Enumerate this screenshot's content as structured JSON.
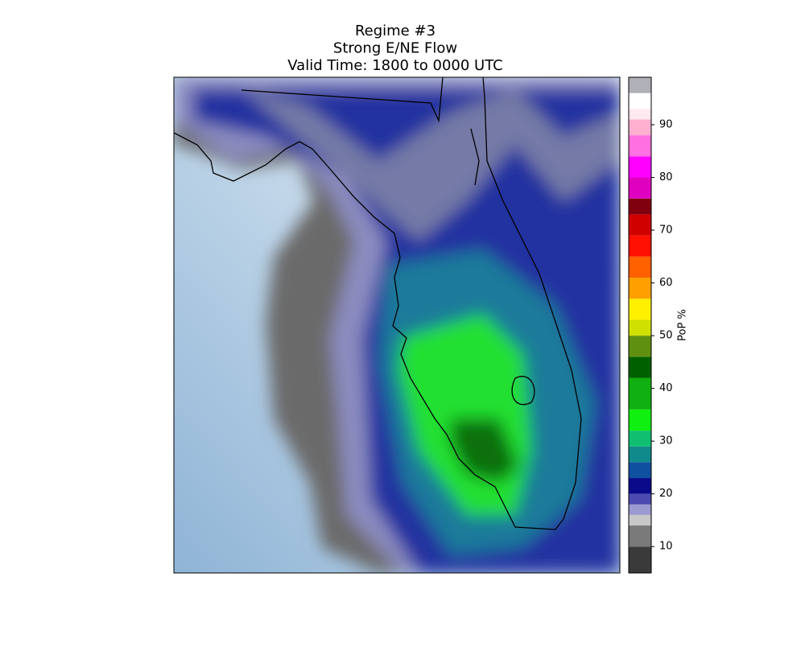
{
  "title_lines": [
    "Regime #3",
    "Strong E/NE Flow",
    "Valid Time: 1800 to 0000 UTC"
  ],
  "colorbar": {
    "label": "PoP %",
    "lim": [
      5,
      99
    ],
    "ticks": [
      10,
      20,
      30,
      40,
      50,
      60,
      70,
      80,
      90
    ],
    "colormap": [
      {
        "value": 5,
        "color": "#3a3a3a"
      },
      {
        "value": 10,
        "color": "#7a7a7a"
      },
      {
        "value": 14,
        "color": "#c8c8c8"
      },
      {
        "value": 16,
        "color": "#9a9ad0"
      },
      {
        "value": 18,
        "color": "#4a4ab0"
      },
      {
        "value": 20,
        "color": "#0a0a8a"
      },
      {
        "value": 23,
        "color": "#1050a0"
      },
      {
        "value": 26,
        "color": "#108a8a"
      },
      {
        "value": 29,
        "color": "#10c070"
      },
      {
        "value": 32,
        "color": "#10f010"
      },
      {
        "value": 36,
        "color": "#10b010"
      },
      {
        "value": 42,
        "color": "#006000"
      },
      {
        "value": 46,
        "color": "#609010"
      },
      {
        "value": 50,
        "color": "#d0e000"
      },
      {
        "value": 53,
        "color": "#fff000"
      },
      {
        "value": 57,
        "color": "#ffa000"
      },
      {
        "value": 61,
        "color": "#ff6000"
      },
      {
        "value": 65,
        "color": "#ff1000"
      },
      {
        "value": 69,
        "color": "#d00000"
      },
      {
        "value": 73,
        "color": "#800010"
      },
      {
        "value": 76,
        "color": "#e000c0"
      },
      {
        "value": 80,
        "color": "#ff00ff"
      },
      {
        "value": 84,
        "color": "#ff70e0"
      },
      {
        "value": 88,
        "color": "#ffb0d0"
      },
      {
        "value": 91,
        "color": "#ffe8f0"
      },
      {
        "value": 93,
        "color": "#ffffff"
      },
      {
        "value": 96,
        "color": "#b0b0b8"
      },
      {
        "value": 99,
        "color": "#607080"
      }
    ]
  }
}
